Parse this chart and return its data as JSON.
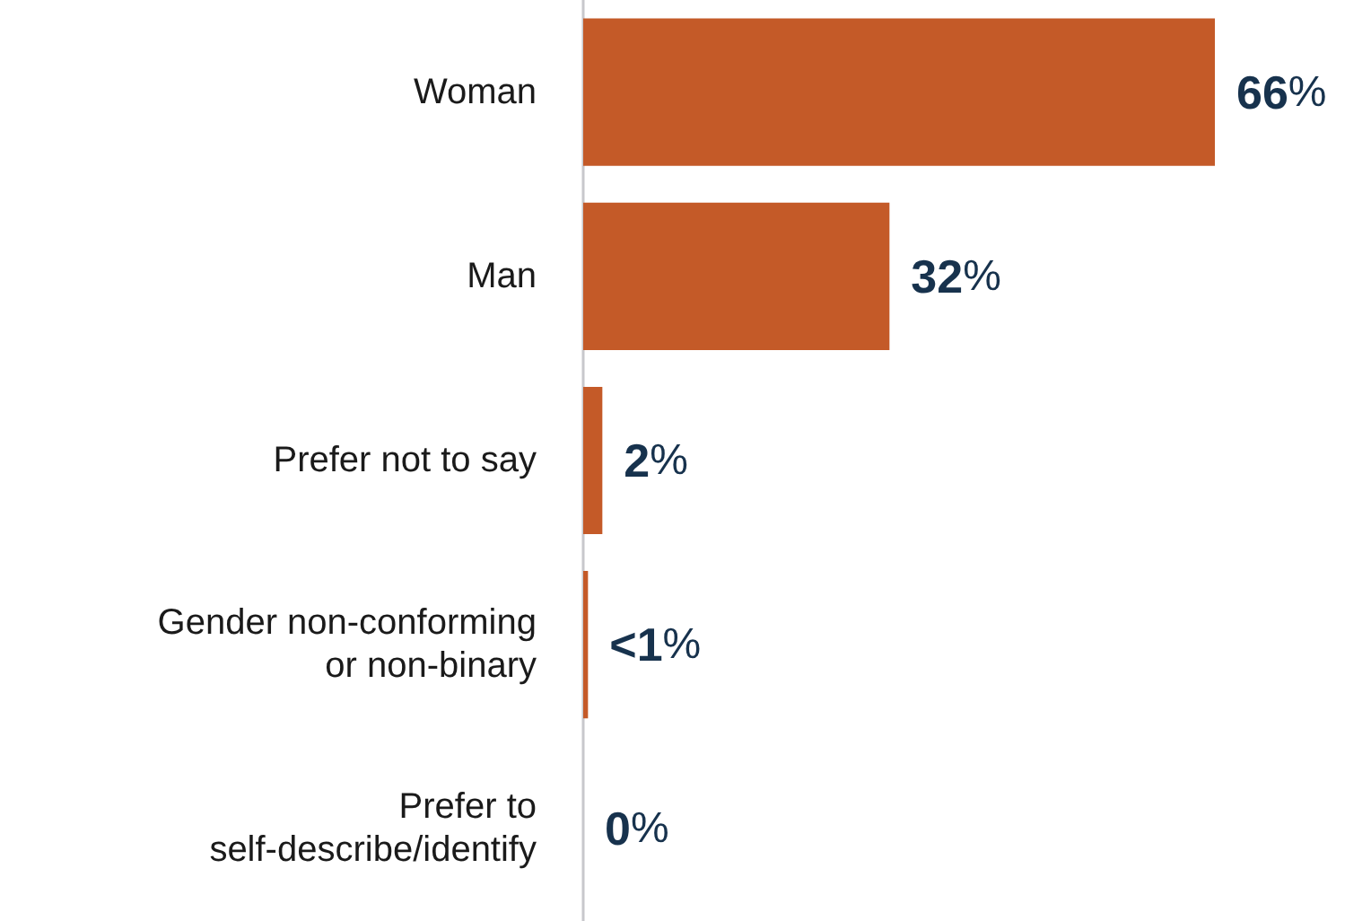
{
  "chart_data": {
    "type": "bar",
    "orientation": "horizontal",
    "categories": [
      "Woman",
      "Man",
      "Prefer not to say",
      "Gender non-conforming\nor non-binary",
      "Prefer to\nself-describe/identify"
    ],
    "values": [
      66,
      32,
      2,
      0.5,
      0
    ],
    "value_labels": [
      "66%",
      "32%",
      "2%",
      "<1%",
      "0%"
    ],
    "color": "#c45a28"
  }
}
